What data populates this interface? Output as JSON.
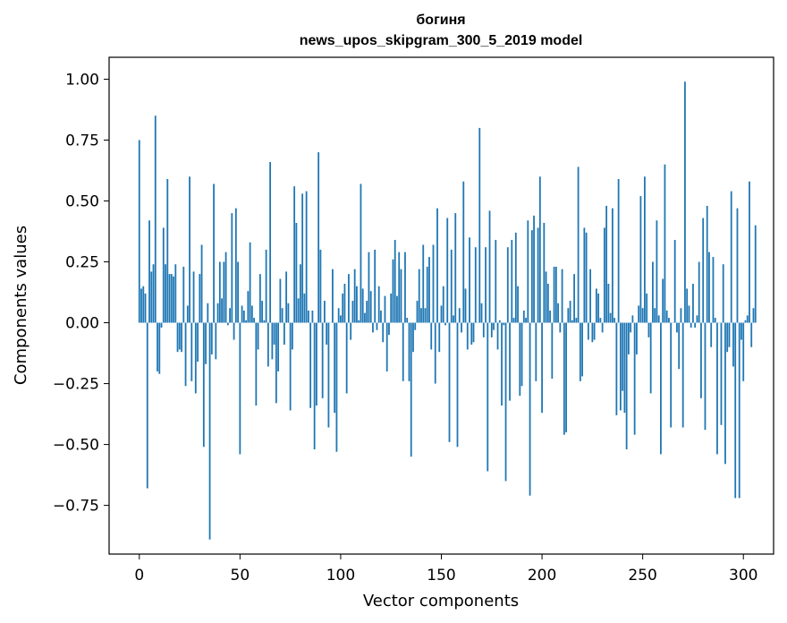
{
  "chart_data": {
    "type": "bar",
    "title": "богиня",
    "subtitle": "news_upos_skipgram_300_5_2019 model",
    "xlabel": "Vector components",
    "ylabel": "Components values",
    "xlim": [
      -15,
      315
    ],
    "ylim": [
      -0.95,
      1.09
    ],
    "xticks": [
      0,
      50,
      100,
      150,
      200,
      250,
      300
    ],
    "yticks": [
      -0.75,
      -0.5,
      -0.25,
      0.0,
      0.25,
      0.5,
      0.75,
      1.0
    ],
    "xtick_labels": [
      "0",
      "50",
      "100",
      "150",
      "200",
      "250",
      "300"
    ],
    "ytick_labels": [
      "−0.75",
      "−0.50",
      "−0.25",
      "0.00",
      "0.25",
      "0.50",
      "0.75",
      "1.00"
    ],
    "bar_color": "#1f77b4",
    "grid": false,
    "values": [
      0.75,
      0.14,
      0.15,
      0.12,
      -0.68,
      0.42,
      0.21,
      0.24,
      0.85,
      -0.2,
      -0.21,
      -0.02,
      0.39,
      0.24,
      0.59,
      0.2,
      0.2,
      0.19,
      0.24,
      -0.12,
      -0.11,
      -0.12,
      0.23,
      -0.26,
      0.07,
      0.6,
      -0.24,
      0.21,
      -0.29,
      -0.16,
      0.2,
      0.32,
      -0.51,
      -0.17,
      0.08,
      -0.89,
      -0.13,
      0.57,
      -0.15,
      0.08,
      0.25,
      0.1,
      0.25,
      0.29,
      -0.01,
      0.06,
      0.45,
      -0.07,
      0.47,
      0.25,
      -0.54,
      0.07,
      0.05,
      0.01,
      0.13,
      0.33,
      0.07,
      0.02,
      -0.34,
      -0.11,
      0.2,
      0.09,
      0.01,
      0.3,
      -0.18,
      0.66,
      -0.15,
      -0.09,
      -0.33,
      -0.2,
      0.18,
      0.06,
      -0.09,
      0.21,
      0.08,
      -0.36,
      -0.11,
      0.56,
      0.41,
      0.1,
      0.24,
      0.53,
      0.12,
      0.54,
      0.05,
      -0.35,
      0.05,
      -0.52,
      -0.34,
      0.7,
      0.3,
      -0.31,
      0.09,
      -0.09,
      -0.43,
      0.0,
      0.22,
      -0.37,
      -0.53,
      0.06,
      0.03,
      0.12,
      0.16,
      -0.29,
      0.2,
      -0.07,
      0.09,
      0.22,
      0.15,
      0.01,
      0.57,
      0.14,
      0.04,
      0.09,
      0.29,
      0.13,
      -0.04,
      0.3,
      -0.03,
      0.15,
      0.05,
      -0.08,
      0.11,
      -0.2,
      -0.05,
      0.12,
      0.26,
      0.34,
      0.11,
      0.29,
      0.22,
      -0.24,
      0.29,
      0.02,
      -0.24,
      -0.55,
      -0.12,
      -0.03,
      0.09,
      0.22,
      0.06,
      0.32,
      0.06,
      0.23,
      0.27,
      -0.11,
      0.32,
      -0.25,
      0.47,
      -0.12,
      0.07,
      0.15,
      -0.01,
      0.43,
      -0.49,
      0.3,
      0.03,
      0.45,
      -0.51,
      0.06,
      -0.04,
      0.58,
      0.14,
      -0.11,
      0.35,
      -0.09,
      -0.08,
      0.31,
      0.0,
      0.8,
      0.08,
      -0.06,
      0.31,
      -0.61,
      0.46,
      -0.06,
      -0.03,
      0.34,
      -0.11,
      0.01,
      -0.34,
      -0.01,
      -0.65,
      0.31,
      -0.32,
      0.34,
      0.02,
      0.37,
      0.15,
      -0.3,
      -0.26,
      0.05,
      0.02,
      0.42,
      -0.71,
      0.38,
      0.44,
      -0.24,
      0.39,
      0.6,
      -0.37,
      0.41,
      0.21,
      0.16,
      0.05,
      -0.23,
      0.23,
      0.23,
      0.08,
      -0.04,
      0.22,
      -0.46,
      -0.45,
      0.06,
      0.09,
      0.01,
      0.2,
      0.02,
      0.64,
      -0.24,
      -0.22,
      0.39,
      0.37,
      -0.07,
      0.22,
      -0.08,
      -0.07,
      0.14,
      0.12,
      0.02,
      -0.04,
      0.39,
      0.48,
      0.16,
      0.04,
      0.47,
      0.02,
      -0.38,
      0.59,
      -0.36,
      -0.28,
      -0.37,
      -0.52,
      -0.13,
      -0.04,
      0.03,
      -0.46,
      -0.13,
      0.07,
      0.52,
      0.06,
      0.6,
      0.12,
      -0.06,
      -0.29,
      0.25,
      0.06,
      0.42,
      0.03,
      -0.54,
      0.18,
      0.65,
      0.05,
      0.02,
      -0.43,
      0.0,
      0.34,
      -0.04,
      -0.19,
      0.06,
      -0.43,
      0.99,
      0.14,
      0.07,
      -0.02,
      0.16,
      -0.02,
      0.03,
      0.25,
      -0.31,
      0.43,
      -0.44,
      0.48,
      0.29,
      -0.1,
      0.27,
      0.02,
      -0.54,
      0.0,
      -0.42,
      0.24,
      -0.58,
      -0.12,
      -0.1,
      0.54,
      -0.18,
      -0.72,
      0.47,
      -0.72,
      -0.07,
      -0.24,
      0.01,
      0.03,
      0.58,
      -0.1,
      0.06,
      0.4
    ]
  }
}
